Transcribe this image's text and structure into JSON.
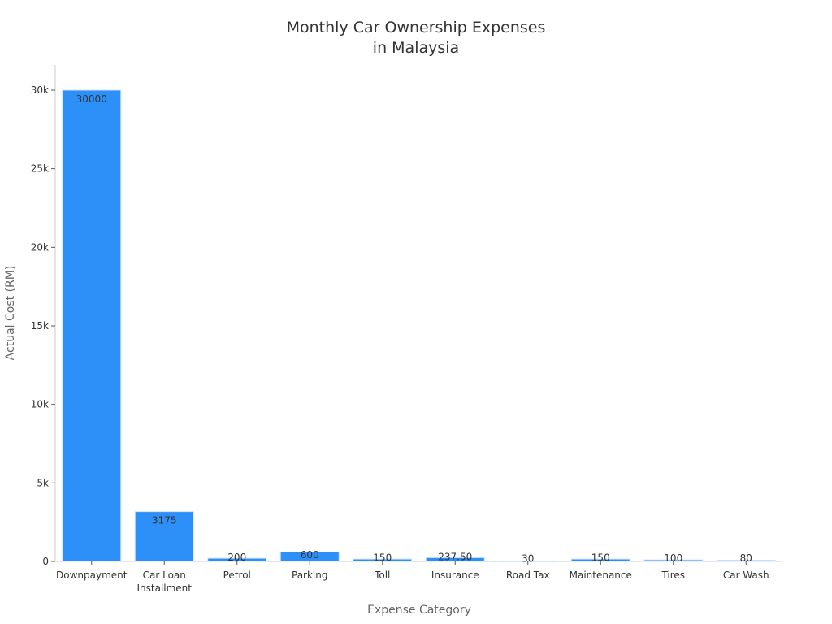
{
  "chart_data": {
    "type": "bar",
    "title": [
      "Monthly Car Ownership Expenses",
      "in Malaysia"
    ],
    "xlabel": "Expense Category",
    "ylabel": "Actual Cost (RM)",
    "categories": [
      [
        "Downpayment"
      ],
      [
        "Car Loan",
        "Installment"
      ],
      [
        "Petrol"
      ],
      [
        "Parking"
      ],
      [
        "Toll"
      ],
      [
        "Insurance"
      ],
      [
        "Road Tax"
      ],
      [
        "Maintenance"
      ],
      [
        "Tires"
      ],
      [
        "Car Wash"
      ]
    ],
    "values": [
      30000,
      3175,
      200,
      600,
      150,
      237.5,
      30,
      150,
      100,
      80
    ],
    "data_labels": [
      "30000",
      "3175",
      "200",
      "600",
      "150",
      "237.50",
      "30",
      "150",
      "100",
      "80"
    ],
    "ylim": [
      0,
      31500
    ],
    "yticks": [
      0,
      5000,
      10000,
      15000,
      20000,
      25000,
      30000
    ],
    "ytick_labels": [
      "0",
      "5k",
      "10k",
      "15k",
      "20k",
      "25k",
      "30k"
    ],
    "bar_color": "#2d8ff8",
    "grid": false,
    "legend": "none"
  }
}
